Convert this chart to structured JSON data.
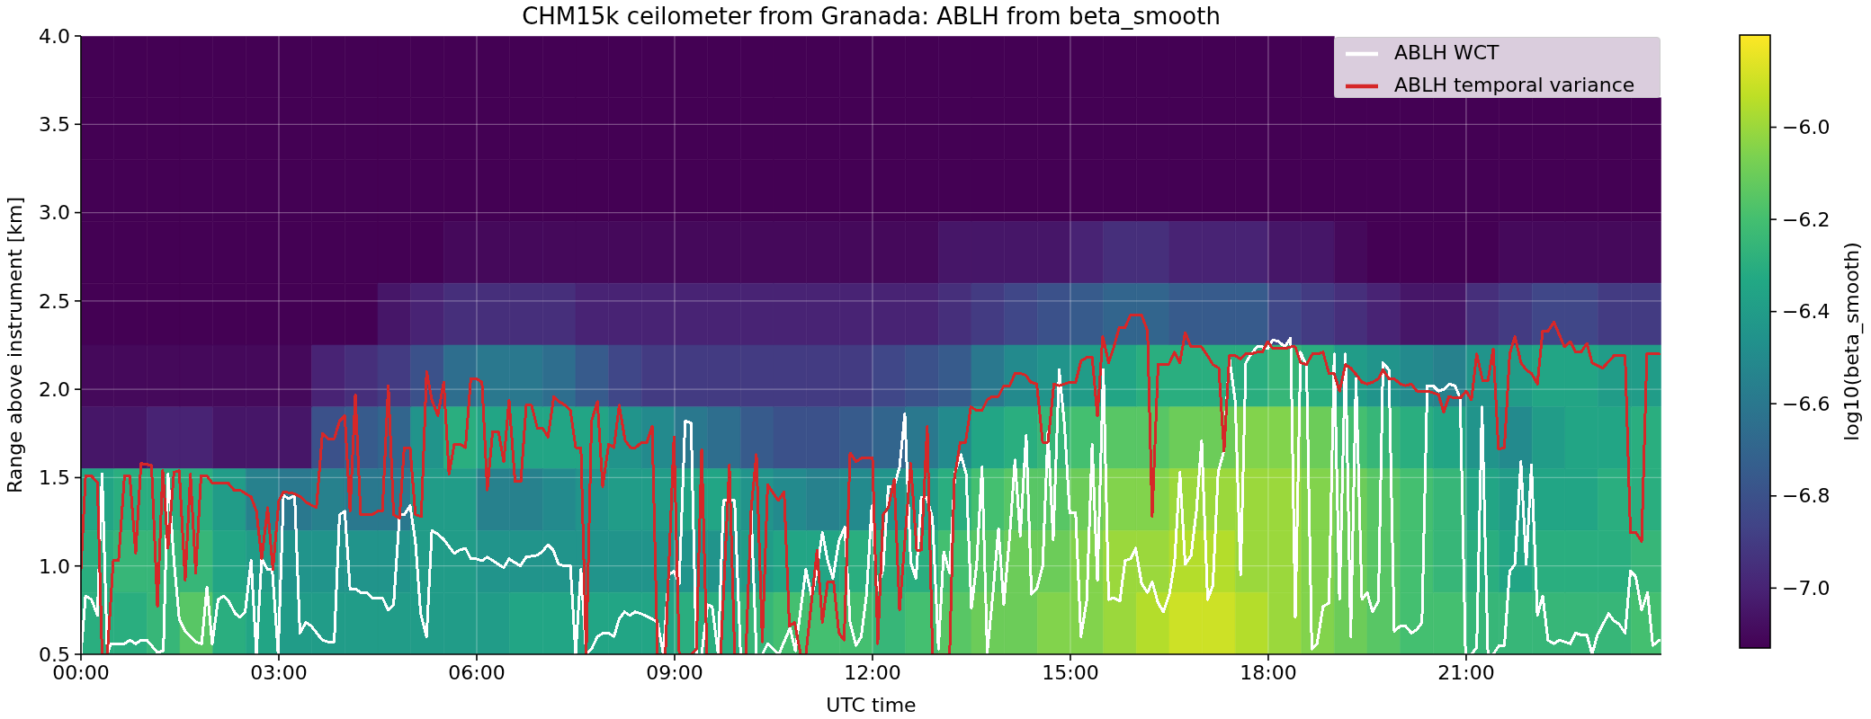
{
  "chart_data": {
    "type": "heatmap",
    "title": "CHM15k ceilometer from Granada: ABLH from beta_smooth",
    "xlabel": "UTC time",
    "ylabel": "Range above instrument [km]",
    "clabel": "log10(beta_smooth)",
    "xlim": [
      0,
      23.96
    ],
    "xticks": [
      {
        "value": 0,
        "label": "00:00"
      },
      {
        "value": 3,
        "label": "03:00"
      },
      {
        "value": 6,
        "label": "06:00"
      },
      {
        "value": 9,
        "label": "09:00"
      },
      {
        "value": 12,
        "label": "12:00"
      },
      {
        "value": 15,
        "label": "15:00"
      },
      {
        "value": 18,
        "label": "18:00"
      },
      {
        "value": 21,
        "label": "21:00"
      }
    ],
    "ylim": [
      0.5,
      4.0
    ],
    "yticks": [
      0.5,
      {
        "value": 1,
        "label": "1.0"
      },
      1.5,
      {
        "value": 2,
        "label": "2.0"
      },
      2.5,
      {
        "value": 3,
        "label": "3.0"
      },
      3.5,
      {
        "value": 4,
        "label": "4.0"
      }
    ],
    "clim": [
      -7.13,
      -5.8
    ],
    "cticks": [
      {
        "value": -7.0,
        "label": "−7.0"
      },
      {
        "value": -6.8,
        "label": "−6.8"
      },
      {
        "value": -6.6,
        "label": "−6.6"
      },
      {
        "value": -6.4,
        "label": "−6.4"
      },
      {
        "value": -6.2,
        "label": "−6.2"
      },
      {
        "value": -6.0,
        "label": "−6.0"
      }
    ],
    "grid": true,
    "legend": "top right",
    "x": [
      0.25,
      0.75,
      1.25,
      1.75,
      2.25,
      2.75,
      3.25,
      3.75,
      4.25,
      4.75,
      5.25,
      5.75,
      6.25,
      6.75,
      7.25,
      7.75,
      8.25,
      8.75,
      9.25,
      9.75,
      10.25,
      10.75,
      11.25,
      11.75,
      12.25,
      12.75,
      13.25,
      13.75,
      14.25,
      14.75,
      15.25,
      15.75,
      16.25,
      16.75,
      17.25,
      17.75,
      18.25,
      18.75,
      19.25,
      19.75,
      20.25,
      20.75,
      21.25,
      21.75,
      22.25,
      22.75,
      23.25,
      23.75
    ],
    "cells": [
      [
        -7.13,
        -7.13,
        -7.13,
        -7.13,
        -7.13,
        -7.13,
        -7.13,
        -7.13,
        -7.13,
        -7.13,
        -7.13,
        -7.13,
        -7.13,
        -7.13,
        -7.13,
        -7.13,
        -7.13,
        -7.13,
        -7.13,
        -7.13,
        -7.13,
        -7.13,
        -7.13,
        -7.13,
        -7.13,
        -7.13,
        -7.13,
        -7.13,
        -7.13,
        -7.13,
        -7.13,
        -7.13,
        -7.13,
        -7.13,
        -7.13,
        -7.13,
        -7.13,
        -7.13,
        null,
        null,
        null,
        null,
        null,
        null,
        null,
        null,
        null,
        null
      ],
      [
        -7.13,
        -7.13,
        -7.13,
        -7.13,
        -7.13,
        -7.13,
        -7.13,
        -7.13,
        -7.13,
        -7.13,
        -7.13,
        -7.13,
        -7.13,
        -7.13,
        -7.13,
        -7.13,
        -7.13,
        -7.13,
        -7.13,
        -7.13,
        -7.13,
        -7.13,
        -7.13,
        -7.13,
        -7.13,
        -7.13,
        -7.13,
        -7.13,
        -7.13,
        -7.13,
        -7.13,
        -7.13,
        -7.13,
        -7.13,
        -7.13,
        -7.13,
        -7.13,
        -7.13,
        -7.13,
        -7.13,
        -7.13,
        -7.13,
        -7.13,
        -7.13,
        -7.13,
        -7.13,
        -7.13,
        -7.13
      ],
      [
        -7.13,
        -7.13,
        -7.13,
        -7.13,
        -7.13,
        -7.13,
        -7.13,
        -7.13,
        -7.13,
        -7.13,
        -7.13,
        -7.13,
        -7.13,
        -7.13,
        -7.13,
        -7.13,
        -7.13,
        -7.13,
        -7.13,
        -7.13,
        -7.13,
        -7.13,
        -7.13,
        -7.13,
        -7.13,
        -7.13,
        -7.13,
        -7.13,
        -7.13,
        -7.13,
        -7.13,
        -7.13,
        -7.13,
        -7.13,
        -7.13,
        -7.13,
        -7.13,
        -7.13,
        -7.13,
        -7.13,
        -7.13,
        -7.13,
        -7.13,
        -7.13,
        -7.13,
        -7.13,
        -7.13,
        -7.13
      ],
      [
        -7.13,
        -7.13,
        -7.13,
        -7.13,
        -7.13,
        -7.13,
        -7.13,
        -7.13,
        -7.13,
        -7.13,
        -7.13,
        -7.1,
        -7.1,
        -7.1,
        -7.1,
        -7.1,
        -7.1,
        -7.1,
        -7.1,
        -7.1,
        -7.1,
        -7.1,
        -7.1,
        -7.1,
        -7.1,
        -7.1,
        -7.05,
        -7.05,
        -7.05,
        -7.05,
        -7.0,
        -6.95,
        -6.95,
        -7.0,
        -7.0,
        -7.0,
        -7.05,
        -7.05,
        -7.1,
        -7.13,
        -7.13,
        -7.13,
        -7.13,
        -7.1,
        -7.1,
        -7.1,
        -7.1,
        -7.1
      ],
      [
        -7.13,
        -7.13,
        -7.13,
        -7.13,
        -7.13,
        -7.13,
        -7.13,
        -7.13,
        -7.13,
        -7.05,
        -7.0,
        -6.95,
        -6.95,
        -6.95,
        -6.95,
        -7.0,
        -7.0,
        -7.0,
        -7.0,
        -7.0,
        -7.0,
        -7.0,
        -7.0,
        -7.0,
        -7.0,
        -7.0,
        -6.95,
        -6.9,
        -6.85,
        -6.8,
        -6.75,
        -6.7,
        -6.7,
        -6.75,
        -6.75,
        -6.75,
        -6.85,
        -6.9,
        -6.95,
        -7.0,
        -7.05,
        -7.05,
        -6.95,
        -6.9,
        -6.85,
        -6.85,
        -6.9,
        -6.9
      ],
      [
        -7.1,
        -7.1,
        -7.1,
        -7.1,
        -7.1,
        -7.1,
        -7.1,
        -7.0,
        -6.95,
        -6.9,
        -6.8,
        -6.65,
        -6.6,
        -6.6,
        -6.65,
        -6.75,
        -6.85,
        -6.9,
        -6.9,
        -6.9,
        -6.9,
        -6.9,
        -6.9,
        -6.9,
        -6.85,
        -6.8,
        -6.75,
        -6.6,
        -6.5,
        -6.45,
        -6.4,
        -6.35,
        -6.3,
        -6.3,
        -6.3,
        -6.3,
        -6.25,
        -6.3,
        -6.4,
        -6.45,
        -6.5,
        -6.55,
        -6.45,
        -6.4,
        -6.35,
        -6.35,
        -6.4,
        -6.4
      ],
      [
        -7.05,
        -7.05,
        -7.0,
        -7.0,
        -7.05,
        -7.05,
        -7.05,
        -6.8,
        -6.75,
        -6.7,
        -6.45,
        -6.3,
        -6.35,
        -6.35,
        -6.35,
        -6.35,
        -6.45,
        -6.5,
        -6.6,
        -6.65,
        -6.75,
        -6.8,
        -6.8,
        -6.75,
        -6.7,
        -6.6,
        -6.5,
        -6.35,
        -6.3,
        -6.25,
        -6.2,
        -6.15,
        -6.15,
        -6.1,
        -6.1,
        -6.05,
        -6.05,
        -6.1,
        -6.2,
        -6.25,
        -6.3,
        -6.35,
        -6.45,
        -6.5,
        -6.4,
        -6.35,
        -6.35,
        -6.3
      ],
      [
        -6.35,
        -6.3,
        -6.3,
        -6.3,
        -6.4,
        -6.55,
        -6.6,
        -6.55,
        -6.6,
        -6.6,
        -6.4,
        -6.4,
        -6.55,
        -6.55,
        -6.5,
        -6.45,
        -6.4,
        -6.4,
        -6.35,
        -6.35,
        -6.45,
        -6.5,
        -6.55,
        -6.5,
        -6.45,
        -6.4,
        -6.3,
        -6.2,
        -6.15,
        -6.15,
        -6.1,
        -6.05,
        -6.05,
        -6.0,
        -6.0,
        -6.0,
        -6.0,
        -6.05,
        -6.1,
        -6.15,
        -6.2,
        -6.25,
        -6.35,
        -6.4,
        -6.35,
        -6.35,
        -6.3,
        -6.3
      ],
      [
        -6.3,
        -6.25,
        -6.25,
        -6.25,
        -6.35,
        -6.4,
        -6.45,
        -6.45,
        -6.45,
        -6.45,
        -6.4,
        -6.4,
        -6.45,
        -6.45,
        -6.45,
        -6.45,
        -6.45,
        -6.45,
        -6.45,
        -6.45,
        -6.4,
        -6.35,
        -6.35,
        -6.3,
        -6.3,
        -6.3,
        -6.2,
        -6.15,
        -6.1,
        -6.1,
        -6.05,
        -6.0,
        -6.0,
        -5.95,
        -5.95,
        -6.0,
        -6.0,
        -6.05,
        -6.1,
        -6.15,
        -6.2,
        -6.25,
        -6.3,
        -6.35,
        -6.3,
        -6.3,
        -6.3,
        -6.25
      ],
      [
        -6.3,
        -6.3,
        -6.25,
        -6.15,
        -6.3,
        -6.35,
        -6.4,
        -6.4,
        -6.4,
        -6.4,
        -6.4,
        -6.4,
        -6.4,
        -6.35,
        -6.35,
        -6.35,
        -6.35,
        -6.35,
        -6.3,
        -6.3,
        -6.25,
        -6.2,
        -6.2,
        -6.2,
        -6.25,
        -6.2,
        -6.15,
        -6.1,
        -6.1,
        -6.05,
        -6.05,
        -6.0,
        -5.95,
        -5.9,
        -5.9,
        -5.95,
        -6.0,
        -6.05,
        -6.1,
        -6.15,
        -6.2,
        -6.2,
        -6.25,
        -6.25,
        -6.25,
        -6.25,
        -6.25,
        -6.2
      ]
    ],
    "series": [
      {
        "type": "line",
        "name": "ABLH WCT",
        "color": "#ffffff",
        "x": [
          0,
          0.07,
          0.16,
          0.25,
          0.32,
          0.4,
          0.45,
          0.66,
          0.74,
          0.83,
          0.91,
          1.0,
          1.16,
          1.25,
          1.32,
          1.41,
          1.49,
          1.58,
          1.74,
          1.83,
          1.91,
          1.99,
          2.08,
          2.16,
          2.24,
          2.34,
          2.41,
          2.49,
          2.58,
          2.66,
          2.74,
          2.83,
          2.9,
          2.99,
          3.07,
          3.15,
          3.24,
          3.32,
          3.41,
          3.49,
          3.66,
          3.75,
          3.84,
          3.92,
          4.0,
          4.08,
          4.16,
          4.24,
          4.33,
          4.41,
          4.57,
          4.66,
          4.74,
          4.83,
          4.9,
          4.99,
          5.07,
          5.15,
          5.24,
          5.32,
          5.41,
          5.5,
          5.58,
          5.66,
          5.74,
          5.83,
          5.91,
          5.99,
          6.08,
          6.16,
          6.41,
          6.49,
          6.66,
          6.75,
          6.91,
          6.99,
          7.08,
          7.16,
          7.24,
          7.33,
          7.42,
          7.5,
          7.58,
          7.66,
          7.74,
          7.83,
          7.92,
          8.0,
          8.08,
          8.16,
          8.24,
          8.32,
          8.4,
          8.49,
          8.66,
          8.74,
          8.83,
          8.91,
          8.99,
          9.07,
          9.16,
          9.25,
          9.33,
          9.41,
          9.5,
          9.57,
          9.66,
          9.74,
          9.91,
          10.0,
          10.08,
          10.16,
          10.24,
          10.33,
          10.41,
          10.5,
          10.58,
          10.75,
          10.83,
          10.91,
          10.99,
          11.08,
          11.16,
          11.24,
          11.32,
          11.4,
          11.49,
          11.58,
          11.66,
          11.75,
          11.83,
          11.91,
          11.99,
          12.07,
          12.16,
          12.24,
          12.33,
          12.41,
          12.49,
          12.58,
          12.66,
          12.74,
          12.82,
          12.91,
          13.0,
          13.08,
          13.17,
          13.25,
          13.34,
          13.42,
          13.5,
          13.58,
          13.66,
          13.74,
          13.83,
          13.91,
          13.99,
          14.08,
          14.16,
          14.24,
          14.33,
          14.41,
          14.49,
          14.58,
          14.66,
          14.74,
          14.83,
          14.91,
          14.99,
          15.08,
          15.16,
          15.25,
          15.33,
          15.41,
          15.5,
          15.58,
          15.66,
          15.75,
          15.83,
          15.91,
          15.99,
          16.08,
          16.17,
          16.24,
          16.33,
          16.41,
          16.5,
          16.58,
          16.66,
          16.74,
          16.83,
          16.91,
          16.99,
          17.08,
          17.16,
          17.24,
          17.32,
          17.41,
          17.5,
          17.58,
          17.66,
          17.74,
          17.83,
          17.91,
          17.99,
          18.07,
          18.16,
          18.25,
          18.34,
          18.41,
          18.49,
          18.58,
          18.66,
          18.74,
          18.83,
          18.92,
          19.0,
          19.08,
          19.17,
          19.25,
          19.33,
          19.42,
          19.5,
          19.58,
          19.67,
          19.74,
          19.83,
          19.91,
          20.0,
          20.08,
          20.17,
          20.25,
          20.33,
          20.41,
          20.5,
          20.58,
          20.66,
          20.74,
          20.83,
          20.91,
          20.99,
          21.08,
          21.16,
          21.24,
          21.33,
          21.41,
          21.5,
          21.58,
          21.66,
          21.74,
          21.83,
          21.91,
          21.99,
          22.08,
          22.16,
          22.24,
          22.33,
          22.41,
          22.5,
          22.58,
          22.66,
          22.74,
          22.83,
          22.91,
          22.99,
          23.16,
          23.24,
          23.32,
          23.41,
          23.49,
          23.57,
          23.66,
          23.75,
          23.83,
          23.93
        ],
        "values": [
          0.5,
          0.83,
          0.81,
          0.72,
          1.52,
          0.5,
          0.56,
          0.56,
          0.58,
          0.56,
          0.58,
          0.58,
          0.51,
          0.52,
          1.52,
          1.03,
          0.7,
          0.63,
          0.57,
          0.56,
          0.88,
          0.56,
          0.81,
          0.83,
          0.8,
          0.73,
          0.71,
          0.74,
          1.03,
          0.5,
          1.04,
          0.98,
          0.98,
          0.5,
          1.4,
          1.38,
          1.4,
          0.62,
          0.68,
          0.66,
          0.58,
          0.57,
          0.57,
          1.29,
          1.31,
          0.87,
          0.87,
          0.85,
          0.85,
          0.82,
          0.82,
          0.75,
          0.78,
          1.29,
          1.29,
          1.34,
          1.14,
          0.73,
          0.6,
          1.2,
          1.18,
          1.15,
          1.11,
          1.07,
          1.09,
          1.1,
          1.04,
          1.04,
          1.03,
          1.05,
          0.99,
          1.04,
          1.0,
          1.05,
          1.06,
          1.08,
          1.12,
          1.09,
          1.01,
          1.0,
          1.0,
          0.5,
          0.98,
          0.5,
          0.53,
          0.6,
          0.62,
          0.62,
          0.6,
          0.7,
          0.74,
          0.72,
          0.74,
          0.73,
          0.7,
          0.68,
          0.5,
          0.95,
          0.97,
          0.9,
          1.82,
          1.81,
          0.5,
          0.5,
          0.78,
          0.77,
          0.5,
          1.37,
          1.37,
          0.5,
          0.5,
          1.32,
          0.5,
          0.5,
          0.56,
          0.53,
          0.5,
          0.65,
          0.52,
          0.75,
          0.98,
          0.82,
          0.98,
          1.19,
          1.03,
          0.93,
          1.14,
          1.22,
          0.68,
          0.55,
          0.6,
          0.84,
          1.34,
          0.86,
          0.98,
          1.45,
          1.45,
          1.56,
          1.86,
          1.02,
          0.93,
          1.39,
          1.39,
          1.27,
          0.53,
          1.08,
          0.96,
          1.53,
          1.63,
          1.52,
          0.76,
          1.01,
          1.56,
          0.51,
          0.86,
          1.21,
          0.78,
          1.17,
          1.6,
          1.17,
          1.74,
          0.84,
          0.87,
          1.0,
          1.76,
          1.15,
          2.11,
          1.8,
          1.3,
          1.3,
          0.6,
          0.81,
          1.69,
          0.92,
          2.11,
          0.81,
          0.82,
          0.8,
          1.03,
          1.04,
          1.1,
          0.9,
          0.85,
          0.91,
          0.79,
          0.74,
          0.84,
          1.02,
          1.53,
          1.01,
          1.06,
          1.31,
          1.71,
          0.81,
          0.89,
          1.53,
          1.64,
          2.18,
          1.93,
          0.95,
          2.15,
          2.2,
          2.24,
          2.24,
          2.23,
          2.28,
          2.27,
          2.24,
          2.29,
          0.71,
          2.21,
          2.13,
          0.53,
          0.56,
          0.77,
          0.79,
          2.2,
          0.81,
          2.2,
          0.6,
          2.06,
          0.81,
          0.85,
          0.74,
          0.8,
          2.15,
          2.11,
          0.63,
          0.66,
          0.66,
          0.62,
          0.64,
          0.68,
          2.02,
          2.02,
          1.99,
          2.0,
          2.03,
          2.02,
          1.95,
          0.5,
          0.5,
          0.54,
          1.9,
          0.5,
          0.5,
          0.55,
          0.55,
          0.97,
          1.01,
          1.59,
          1.01,
          1.57,
          0.72,
          0.83,
          0.58,
          0.56,
          0.58,
          0.57,
          0.56,
          0.62,
          0.61,
          0.61,
          0.5,
          0.61,
          0.73,
          0.69,
          0.67,
          0.62,
          0.97,
          0.94,
          0.75,
          0.85,
          0.55,
          0.58
        ]
      },
      {
        "type": "line",
        "name": "ABLH temporal variance",
        "color": "#d62728",
        "x": [
          0,
          0.07,
          0.16,
          0.25,
          0.32,
          0.4,
          0.49,
          0.57,
          0.66,
          0.74,
          0.83,
          0.91,
          1.07,
          1.16,
          1.24,
          1.32,
          1.41,
          1.49,
          1.58,
          1.66,
          1.74,
          1.82,
          1.91,
          1.99,
          2.23,
          2.32,
          2.41,
          2.58,
          2.66,
          2.74,
          2.83,
          2.91,
          3.0,
          3.07,
          3.23,
          3.34,
          3.41,
          3.57,
          3.66,
          3.75,
          3.84,
          3.92,
          4.0,
          4.08,
          4.16,
          4.24,
          4.41,
          4.5,
          4.57,
          4.66,
          4.74,
          4.83,
          4.9,
          4.99,
          5.07,
          5.16,
          5.24,
          5.32,
          5.41,
          5.5,
          5.58,
          5.66,
          5.74,
          5.83,
          5.91,
          6.0,
          6.08,
          6.16,
          6.24,
          6.33,
          6.41,
          6.49,
          6.58,
          6.67,
          6.75,
          6.83,
          6.92,
          7.0,
          7.08,
          7.17,
          7.25,
          7.34,
          7.42,
          7.5,
          7.58,
          7.66,
          7.74,
          7.83,
          7.91,
          8.0,
          8.08,
          8.16,
          8.25,
          8.33,
          8.41,
          8.5,
          8.58,
          8.66,
          8.74,
          8.86,
          8.99,
          9.07,
          9.25,
          9.33,
          9.41,
          9.49,
          9.7,
          9.83,
          9.91,
          10.08,
          10.16,
          10.24,
          10.33,
          10.41,
          10.57,
          10.66,
          10.74,
          10.82,
          10.91,
          10.99,
          11.16,
          11.24,
          11.32,
          11.41,
          11.49,
          11.57,
          11.66,
          11.75,
          11.83,
          12.0,
          12.08,
          12.16,
          12.24,
          12.33,
          12.41,
          12.58,
          12.67,
          12.74,
          12.83,
          12.91,
          13.17,
          13.24,
          13.33,
          13.41,
          13.49,
          13.58,
          13.66,
          13.74,
          13.82,
          13.91,
          13.99,
          14.08,
          14.16,
          14.24,
          14.32,
          14.4,
          14.49,
          14.58,
          14.66,
          14.75,
          14.83,
          14.99,
          15.08,
          15.16,
          15.25,
          15.33,
          15.41,
          15.49,
          15.58,
          15.66,
          15.74,
          15.83,
          15.91,
          16.08,
          16.17,
          16.24,
          16.33,
          16.49,
          16.58,
          16.66,
          16.74,
          16.83,
          16.99,
          17.08,
          17.16,
          17.25,
          17.33,
          17.41,
          17.5,
          17.58,
          17.66,
          17.74,
          17.83,
          17.91,
          17.99,
          18.07,
          18.25,
          18.34,
          18.41,
          18.49,
          18.58,
          18.67,
          18.75,
          18.83,
          18.92,
          19.0,
          19.08,
          19.17,
          19.25,
          19.34,
          19.42,
          19.5,
          19.58,
          19.67,
          19.74,
          19.83,
          19.91,
          20.0,
          20.08,
          20.17,
          20.25,
          20.33,
          20.42,
          20.5,
          20.58,
          20.66,
          20.74,
          20.83,
          20.91,
          21.0,
          21.08,
          21.16,
          21.25,
          21.33,
          21.41,
          21.49,
          21.58,
          21.66,
          21.74,
          21.83,
          21.91,
          21.99,
          22.08,
          22.16,
          22.24,
          22.33,
          22.49,
          22.58,
          22.66,
          22.74,
          22.83,
          22.91,
          23.07,
          23.24,
          23.41,
          23.49,
          23.57,
          23.66,
          23.74,
          23.93
        ],
        "values": [
          0.98,
          1.51,
          1.51,
          1.47,
          0.5,
          0.5,
          1.03,
          1.03,
          1.51,
          1.51,
          1.07,
          1.58,
          1.57,
          0.77,
          1.54,
          1.1,
          1.53,
          1.54,
          0.92,
          1.52,
          0.96,
          1.51,
          1.51,
          1.47,
          1.47,
          1.43,
          1.43,
          1.39,
          1.31,
          1.04,
          1.33,
          0.98,
          1.37,
          1.42,
          1.41,
          1.39,
          1.36,
          1.33,
          1.75,
          1.72,
          1.72,
          1.82,
          1.85,
          1.31,
          1.97,
          1.29,
          1.29,
          1.31,
          1.31,
          2.02,
          1.29,
          1.27,
          1.67,
          1.67,
          1.29,
          1.28,
          2.1,
          1.94,
          1.85,
          2.04,
          1.52,
          1.69,
          1.69,
          1.67,
          2.06,
          2.06,
          2.04,
          1.43,
          1.76,
          1.76,
          1.59,
          1.94,
          1.48,
          1.48,
          1.91,
          1.91,
          1.78,
          1.78,
          1.73,
          1.96,
          1.93,
          1.91,
          1.88,
          1.67,
          1.67,
          0.5,
          1.82,
          1.93,
          1.45,
          1.69,
          1.67,
          1.91,
          1.71,
          1.67,
          1.67,
          1.7,
          1.7,
          1.79,
          0.5,
          0.5,
          1.73,
          0.5,
          0.5,
          0.53,
          1.66,
          0.5,
          0.5,
          1.57,
          0.5,
          0.5,
          1.32,
          1.63,
          0.57,
          1.46,
          1.37,
          1.42,
          0.66,
          0.68,
          0.5,
          0.5,
          1.09,
          0.68,
          0.91,
          0.91,
          0.62,
          0.58,
          1.64,
          1.59,
          1.61,
          1.61,
          0.56,
          1.29,
          1.33,
          1.49,
          0.75,
          1.58,
          1.09,
          1.09,
          1.79,
          0.5,
          0.5,
          1.49,
          1.7,
          1.7,
          1.9,
          1.88,
          1.88,
          1.94,
          1.96,
          1.96,
          2.02,
          2.02,
          2.09,
          2.09,
          2.08,
          2.04,
          2.03,
          1.7,
          1.7,
          2.03,
          2.02,
          2.04,
          2.04,
          2.16,
          2.18,
          2.18,
          1.85,
          2.3,
          2.15,
          2.24,
          2.35,
          2.35,
          2.42,
          2.42,
          2.33,
          1.28,
          2.14,
          2.14,
          2.21,
          2.15,
          2.32,
          2.24,
          2.24,
          2.19,
          2.14,
          2.12,
          1.65,
          2.19,
          2.19,
          2.17,
          2.2,
          2.2,
          2.21,
          2.21,
          2.27,
          2.23,
          2.23,
          2.24,
          2.24,
          2.15,
          2.14,
          2.2,
          2.2,
          2.21,
          2.09,
          2.09,
          1.99,
          2.14,
          2.12,
          2.08,
          2.04,
          2.03,
          2.04,
          2.06,
          2.11,
          2.06,
          2.06,
          2.03,
          2.02,
          2.03,
          1.99,
          1.99,
          1.99,
          1.98,
          1.97,
          1.87,
          1.96,
          1.95,
          1.95,
          1.99,
          1.94,
          2.2,
          2.05,
          2.05,
          2.23,
          1.66,
          1.67,
          2.2,
          2.3,
          2.15,
          2.11,
          2.09,
          2.03,
          2.33,
          2.33,
          2.38,
          2.24,
          2.27,
          2.21,
          2.21,
          2.26,
          2.15,
          2.12,
          2.19,
          2.19,
          1.19,
          1.19,
          1.14,
          2.2,
          2.2
        ]
      }
    ]
  }
}
